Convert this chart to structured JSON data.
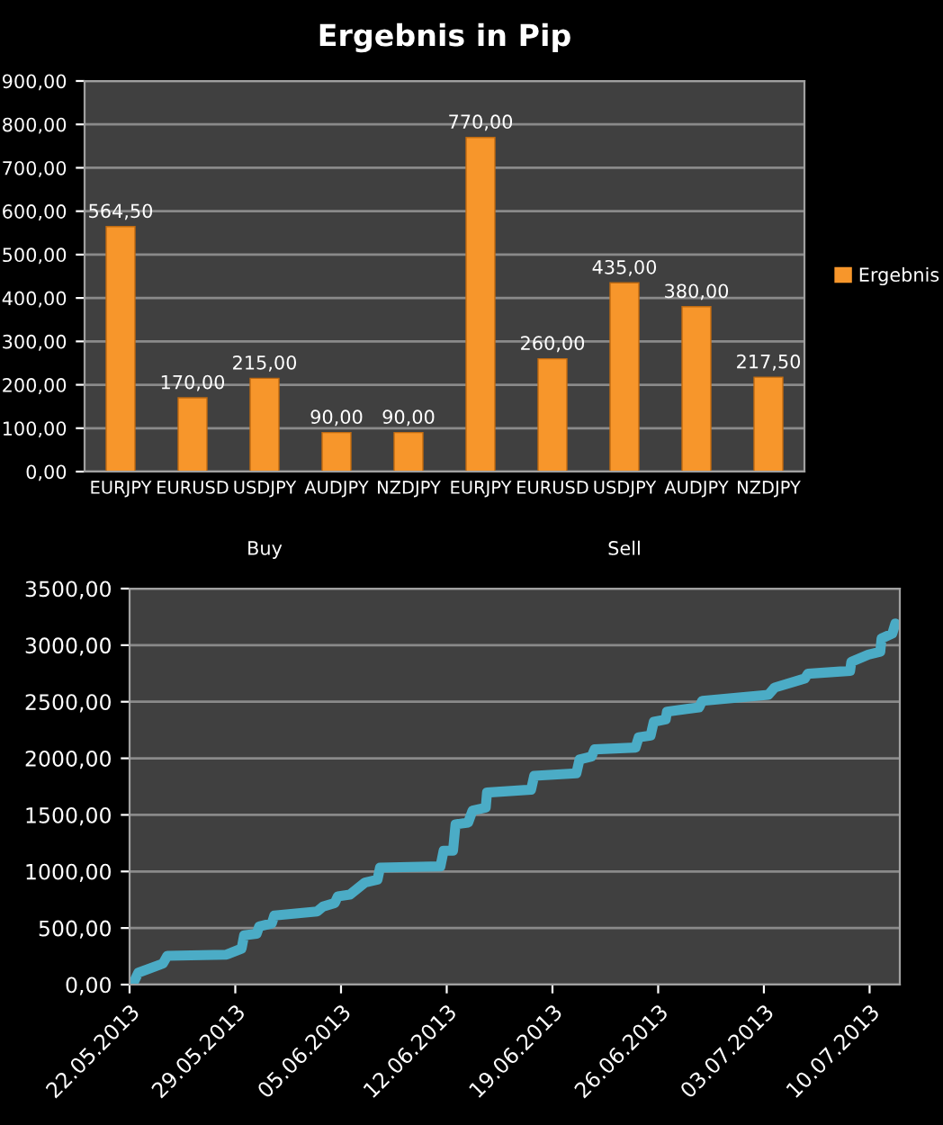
{
  "chart_data": [
    {
      "type": "bar",
      "title": "Ergebnis in Pip",
      "categories": [
        "EURJPY",
        "EURUSD",
        "USDJPY",
        "AUDJPY",
        "NZDJPY",
        "EURJPY",
        "EURUSD",
        "USDJPY",
        "AUDJPY",
        "NZDJPY"
      ],
      "series": [
        {
          "name": "Ergebnis",
          "color": "#f7962b",
          "values": [
            564.5,
            170,
            215,
            90,
            90,
            770,
            260,
            435,
            380,
            217.5
          ],
          "value_labels": [
            "564,50",
            "170,00",
            "215,00",
            "90,00",
            "90,00",
            "770,00",
            "260,00",
            "435,00",
            "380,00",
            "217,50"
          ]
        }
      ],
      "annotations": [
        "Buy",
        "Sell"
      ],
      "ylim": [
        0,
        900
      ],
      "yticks": [
        {
          "value": 0,
          "label": "0,00"
        },
        {
          "value": 100,
          "label": "100,00"
        },
        {
          "value": 200,
          "label": "200,00"
        },
        {
          "value": 300,
          "label": "300,00"
        },
        {
          "value": 400,
          "label": "400,00"
        },
        {
          "value": 500,
          "label": "500,00"
        },
        {
          "value": 600,
          "label": "600,00"
        },
        {
          "value": 700,
          "label": "700,00"
        },
        {
          "value": 800,
          "label": "800,00"
        },
        {
          "value": 900,
          "label": "900,00"
        }
      ],
      "grid": "y",
      "legend": "right"
    },
    {
      "type": "line",
      "series": [
        {
          "color": "#4bacc6",
          "values": [
            25,
            106,
            186,
            255,
            265,
            318,
            435,
            450,
            514,
            541,
            610,
            647,
            689,
            721,
            780,
            795,
            902,
            928,
            1034,
            1045,
            1183,
            1183,
            1416,
            1432,
            1538,
            1564,
            1697,
            1723,
            1845,
            1867,
            1989,
            2015,
            2079,
            2095,
            2185,
            2201,
            2323,
            2344,
            2413,
            2450,
            2508,
            2561,
            2625,
            2705,
            2747,
            2773,
            2853,
            2917,
            2943,
            3060,
            3102,
            3192
          ]
        }
      ],
      "x": [
        "2013-05-22T07:00",
        "2013-05-22T14:00",
        "2013-05-24T05:00",
        "2013-05-24T12:00",
        "2013-05-28T10:00",
        "2013-05-29T10:00",
        "2013-05-29T14:00",
        "2013-05-30T10:00",
        "2013-05-30T14:00",
        "2013-05-31T10:00",
        "2013-05-31T14:00",
        "2013-06-03T10:00",
        "2013-06-03T19:00",
        "2013-06-04T14:00",
        "2013-06-04T19:00",
        "2013-06-05T14:00",
        "2013-06-06T14:00",
        "2013-06-07T10:00",
        "2013-06-07T14:00",
        "2013-06-11T14:00",
        "2013-06-11T19:00",
        "2013-06-12T10:00",
        "2013-06-12T14:00",
        "2013-06-13T10:00",
        "2013-06-13T17:00",
        "2013-06-14T14:00",
        "2013-06-14T16:00",
        "2013-06-17T14:00",
        "2013-06-17T19:00",
        "2013-06-20T14:00",
        "2013-06-20T19:00",
        "2013-06-21T14:00",
        "2013-06-21T19:00",
        "2013-06-24T12:00",
        "2013-06-24T17:00",
        "2013-06-25T12:00",
        "2013-06-25T17:00",
        "2013-06-26T12:00",
        "2013-06-26T14:00",
        "2013-06-28T17:00",
        "2013-06-28T22:00",
        "2013-07-03T07:00",
        "2013-07-03T17:00",
        "2013-07-05T17:00",
        "2013-07-05T22:00",
        "2013-07-08T17:00",
        "2013-07-08T19:00",
        "2013-07-09T22:00",
        "2013-07-10T17:00",
        "2013-07-10T19:00",
        "2013-07-11T12:00",
        "2013-07-11T17:00"
      ],
      "xlim": [
        "2013-05-22",
        "2013-07-12"
      ],
      "xticks": [
        {
          "value": "2013-05-22",
          "label": "22.05.2013"
        },
        {
          "value": "2013-05-29",
          "label": "29.05.2013"
        },
        {
          "value": "2013-06-05",
          "label": "05.06.2013"
        },
        {
          "value": "2013-06-12",
          "label": "12.06.2013"
        },
        {
          "value": "2013-06-19",
          "label": "19.06.2013"
        },
        {
          "value": "2013-06-26",
          "label": "26.06.2013"
        },
        {
          "value": "2013-07-03",
          "label": "03.07.2013"
        },
        {
          "value": "2013-07-10",
          "label": "10.07.2013"
        }
      ],
      "ylim": [
        0,
        3500
      ],
      "yticks": [
        {
          "value": 0,
          "label": "0,00"
        },
        {
          "value": 500,
          "label": "500,00"
        },
        {
          "value": 1000,
          "label": "1000,00"
        },
        {
          "value": 1500,
          "label": "1500,00"
        },
        {
          "value": 2000,
          "label": "2000,00"
        },
        {
          "value": 2500,
          "label": "2500,00"
        },
        {
          "value": 3000,
          "label": "3000,00"
        },
        {
          "value": 3500,
          "label": "3500,00"
        }
      ],
      "grid": "y",
      "legend": false
    }
  ]
}
